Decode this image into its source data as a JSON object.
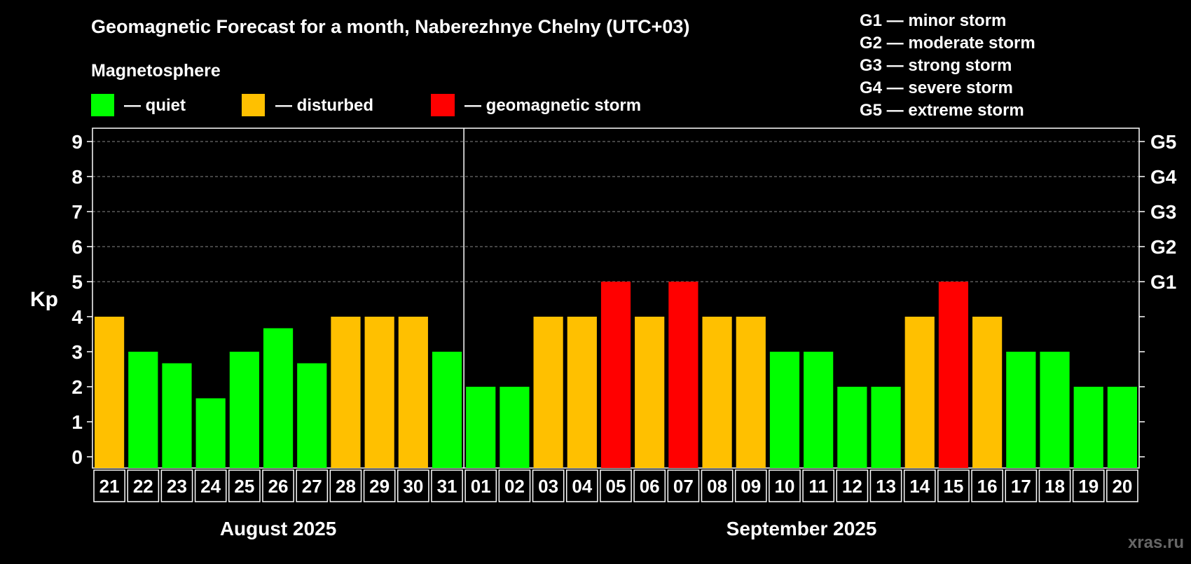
{
  "colors": {
    "background": "#000000",
    "quiet": "#00FF00",
    "disturbed": "#FFC000",
    "storm": "#FF0000",
    "text": "#FFFFFF",
    "grid": "#888888",
    "watermark": "#666666"
  },
  "header": {
    "title": "Geomagnetic Forecast for a month, Naberezhnye Chelny (UTC+03)",
    "subtitle": "Magnetosphere",
    "legend": [
      {
        "key": "quiet",
        "label": "— quiet"
      },
      {
        "key": "disturbed",
        "label": "— disturbed"
      },
      {
        "key": "storm",
        "label": "— geomagnetic storm"
      }
    ],
    "storm_scale": [
      "G1 — minor storm",
      "G2 — moderate storm",
      "G3 — strong storm",
      "G4 — severe storm",
      "G5 — extreme storm"
    ]
  },
  "watermark": "xras.ru",
  "chart_data": {
    "type": "bar",
    "title": "Geomagnetic Forecast for a month, Naberezhnye Chelny (UTC+03)",
    "ylabel": "Kp",
    "ylim": [
      -0.3,
      9.3
    ],
    "yticks": [
      "0",
      "1",
      "2",
      "3",
      "4",
      "5",
      "6",
      "7",
      "8",
      "9"
    ],
    "grid_from": 5,
    "right_axis_labels": [
      {
        "kp": 5,
        "label": "G1"
      },
      {
        "kp": 6,
        "label": "G2"
      },
      {
        "kp": 7,
        "label": "G3"
      },
      {
        "kp": 8,
        "label": "G4"
      },
      {
        "kp": 9,
        "label": "G5"
      }
    ],
    "categories": [
      "21",
      "22",
      "23",
      "24",
      "25",
      "26",
      "27",
      "28",
      "29",
      "30",
      "31",
      "01",
      "02",
      "03",
      "04",
      "05",
      "06",
      "07",
      "08",
      "09",
      "10",
      "11",
      "12",
      "13",
      "14",
      "15",
      "16",
      "17",
      "18",
      "19",
      "20"
    ],
    "values": [
      4,
      3,
      2.67,
      1.67,
      3,
      3.67,
      2.67,
      4,
      4,
      4,
      3,
      2,
      2,
      4,
      4,
      5,
      4,
      5,
      4,
      4,
      3,
      3,
      2,
      2,
      4,
      5,
      4,
      3,
      3,
      2,
      2
    ],
    "levels": [
      "disturbed",
      "quiet",
      "quiet",
      "quiet",
      "quiet",
      "quiet",
      "quiet",
      "disturbed",
      "disturbed",
      "disturbed",
      "quiet",
      "quiet",
      "quiet",
      "disturbed",
      "disturbed",
      "storm",
      "disturbed",
      "storm",
      "disturbed",
      "disturbed",
      "quiet",
      "quiet",
      "quiet",
      "quiet",
      "disturbed",
      "storm",
      "disturbed",
      "quiet",
      "quiet",
      "quiet",
      "quiet"
    ],
    "months": [
      {
        "label": "August 2025",
        "start": 0,
        "count": 11
      },
      {
        "label": "September 2025",
        "start": 11,
        "count": 20
      }
    ]
  }
}
